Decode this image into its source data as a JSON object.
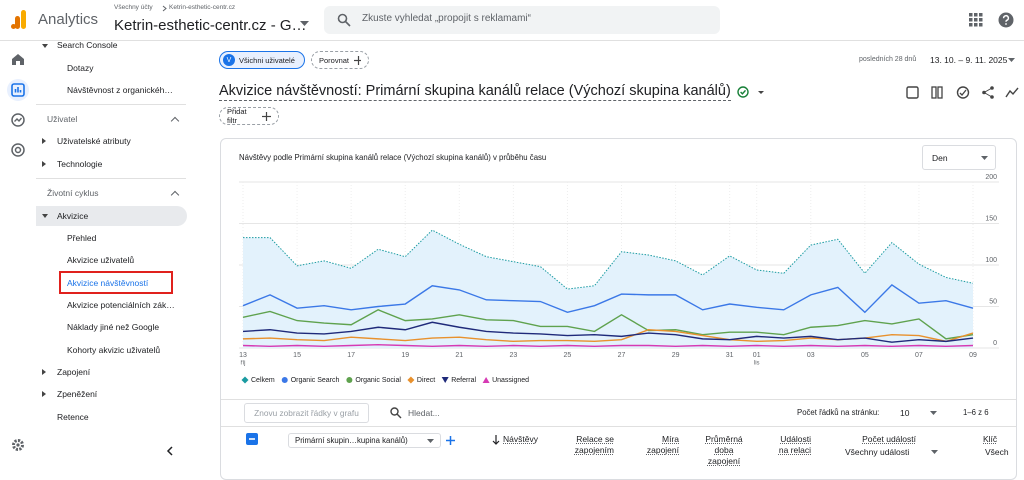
{
  "header": {
    "product": "Analytics",
    "breadcrumb": [
      "Všechny účty",
      "Ketrin-esthetic-centr.cz"
    ],
    "property": "Ketrin-esthetic-centr.cz - G…",
    "search_placeholder": "Zkuste vyhledat „propojit s reklamami“"
  },
  "nav": {
    "items": [
      "Search Console",
      "Dotazy",
      "Návštěvnost z organickéh…",
      "Uživatel",
      "Uživatelské atributy",
      "Technologie",
      "Životní cyklus",
      "Akvizice",
      "Přehled",
      "Akvizice uživatelů",
      "Akvizice návštěvností",
      "Akvizice potenciálních zák…",
      "Náklady jiné než Google",
      "Kohorty akvizic uživatelů",
      "Zapojení",
      "Zpeněžení",
      "Retence"
    ]
  },
  "report": {
    "segment_initial": "V",
    "segment": "Všichni uživatelé",
    "compare": "Porovnat",
    "date_range_label": "posledních 28 dnů",
    "date_range": "13. 10. – 9. 11. 2025",
    "title": "Akvizice návštěvností: Primární skupina kanálů relace (Výchozí skupina kanálů)",
    "add_filter": "Přidat filtr",
    "period": "Den"
  },
  "chart_data": {
    "type": "line",
    "title": "Návštěvy podle Primární skupina kanálů relace (Výchozí skupina kanálů) v průběhu času",
    "categories": [
      "13",
      null,
      "15",
      null,
      "17",
      null,
      "19",
      null,
      "21",
      null,
      "23",
      null,
      "25",
      null,
      "27",
      null,
      "29",
      null,
      "31",
      "01",
      null,
      "03",
      null,
      "05",
      null,
      "07",
      null,
      "09"
    ],
    "category_months": [
      "říj",
      null,
      null,
      null,
      null,
      null,
      null,
      null,
      null,
      null,
      null,
      null,
      null,
      null,
      null,
      null,
      null,
      null,
      null,
      "lis",
      null,
      null,
      null,
      null,
      null,
      null,
      null,
      null
    ],
    "ylim": [
      0,
      200
    ],
    "yticks": [
      0,
      50,
      100,
      150,
      200
    ],
    "grid": true,
    "series": [
      {
        "name": "Celkem",
        "color": "#1a9ba1",
        "marker": "diamond",
        "area": true,
        "values": [
          133,
          133,
          99,
          105,
          96,
          119,
          110,
          142,
          125,
          110,
          104,
          98,
          71,
          75,
          116,
          112,
          105,
          88,
          111,
          94,
          90,
          124,
          131,
          90,
          127,
          101,
          85,
          78
        ]
      },
      {
        "name": "Organic Search",
        "color": "#3b78e7",
        "marker": "circle",
        "values": [
          51,
          64,
          48,
          51,
          46,
          50,
          53,
          75,
          70,
          58,
          57,
          56,
          43,
          51,
          65,
          64,
          64,
          46,
          53,
          49,
          46,
          64,
          73,
          43,
          76,
          54,
          57,
          48
        ]
      },
      {
        "name": "Organic Social",
        "color": "#5fa24e",
        "marker": "circle",
        "values": [
          37,
          44,
          33,
          30,
          28,
          46,
          33,
          35,
          40,
          34,
          33,
          26,
          26,
          20,
          40,
          21,
          22,
          16,
          19,
          19,
          16,
          25,
          27,
          33,
          29,
          35,
          11,
          16
        ]
      },
      {
        "name": "Direct",
        "color": "#e8912d",
        "marker": "diamond",
        "values": [
          11,
          12,
          10,
          9,
          13,
          11,
          9,
          12,
          13,
          10,
          8,
          9,
          9,
          8,
          10,
          22,
          20,
          15,
          10,
          8,
          9,
          12,
          10,
          12,
          16,
          15,
          8,
          18
        ]
      },
      {
        "name": "Referral",
        "color": "#1f2a7a",
        "marker": "triangle-down",
        "values": [
          20,
          22,
          18,
          17,
          20,
          25,
          22,
          31,
          25,
          20,
          18,
          17,
          15,
          16,
          14,
          18,
          16,
          11,
          10,
          14,
          12,
          14,
          10,
          12,
          7,
          10,
          8,
          12
        ]
      },
      {
        "name": "Unassigned",
        "color": "#d63ab4",
        "marker": "triangle-up",
        "values": [
          3,
          2,
          3,
          2,
          3,
          4,
          3,
          2,
          3,
          2,
          3,
          2,
          3,
          2,
          3,
          3,
          2,
          3,
          2,
          3,
          2,
          3,
          2,
          3,
          2,
          3,
          2,
          3
        ]
      }
    ]
  },
  "table": {
    "restore_rows": "Znovu zobrazit řádky v grafu",
    "search_placeholder": "Hledat...",
    "rows_per_page_label": "Počet řádků na stránku:",
    "rows_per_page": 10,
    "pagination": "1–6 z 6",
    "dimension": "Primární skupin…kupina kanálů)",
    "columns": [
      {
        "label": "Návštěvy"
      },
      {
        "label": "Relace se zapojením"
      },
      {
        "label": "Míra zapojení"
      },
      {
        "label": "Průměrná doba zapojení"
      },
      {
        "label": "Události na relaci"
      },
      {
        "label": "Počet událostí",
        "filter": "Všechny události"
      },
      {
        "label": "Klíč",
        "filter": "Všech"
      }
    ]
  }
}
